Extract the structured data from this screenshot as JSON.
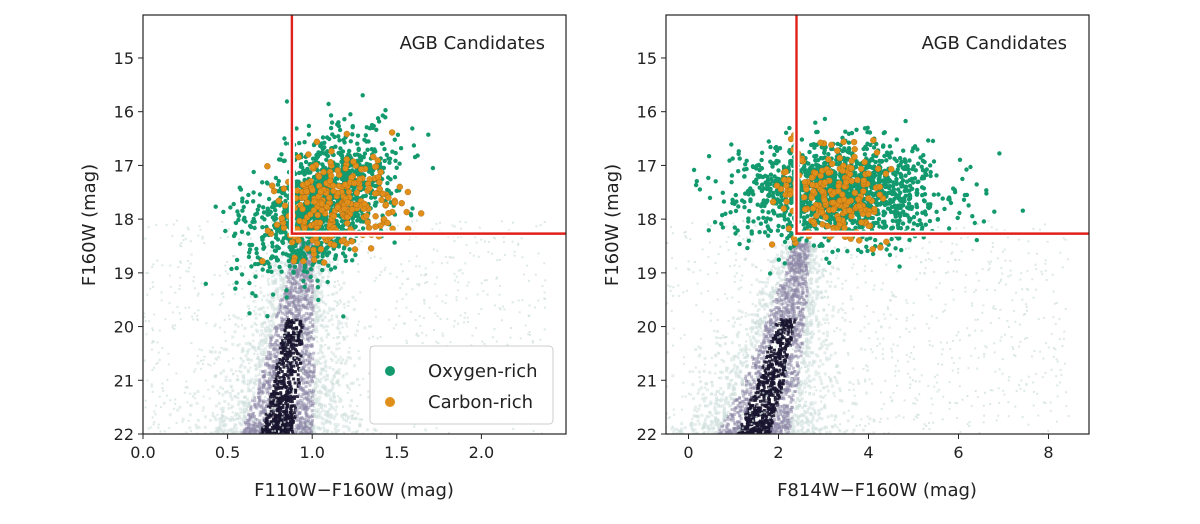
{
  "chart_data": [
    {
      "type": "scatter",
      "title": "",
      "annotation": "AGB Candidates",
      "xlabel": "F110W−F160W (mag)",
      "ylabel": "F160W (mag)",
      "xlim": [
        0.0,
        2.5
      ],
      "ylim": [
        22.0,
        14.2
      ],
      "y_inverted": true,
      "xticks": [
        0.0,
        0.5,
        1.0,
        1.5,
        2.0
      ],
      "xtick_labels": [
        "0.0",
        "0.5",
        "1.0",
        "1.5",
        "2.0"
      ],
      "yticks": [
        15,
        16,
        17,
        18,
        19,
        20,
        21,
        22
      ],
      "ytick_labels": [
        "15",
        "16",
        "17",
        "18",
        "19",
        "20",
        "21",
        "22"
      ],
      "grid": false,
      "legend": {
        "position": "bottom-right",
        "entries": [
          "Oxygen-rich",
          "Carbon-rich"
        ]
      },
      "selection_box": {
        "color_min": 0.88,
        "mag_max": 18.27,
        "color": "#e0201a"
      },
      "background": {
        "type": "density",
        "ridge": [
          [
            0.78,
            22.0
          ],
          [
            0.84,
            21.0
          ],
          [
            0.88,
            20.0
          ],
          [
            0.92,
            19.0
          ],
          [
            0.96,
            18.3
          ]
        ],
        "colors": [
          "#1a1530",
          "#8e88a8",
          "#cfe0dc"
        ]
      },
      "series": [
        {
          "name": "Oxygen-rich",
          "color": "#129a6e",
          "cloud": {
            "center": [
              1.05,
              17.7
            ],
            "spread": [
              0.18,
              0.65
            ],
            "tilt": 0.9,
            "count": 1300
          }
        },
        {
          "name": "Carbon-rich",
          "color": "#e0901a",
          "cloud": {
            "center": [
              1.15,
              17.75
            ],
            "spread": [
              0.17,
              0.5
            ],
            "tilt": 0.5,
            "count": 260
          }
        }
      ]
    },
    {
      "type": "scatter",
      "title": "",
      "annotation": "AGB Candidates",
      "xlabel": "F814W−F160W (mag)",
      "ylabel": "F160W (mag)",
      "xlim": [
        -0.5,
        8.9
      ],
      "ylim": [
        22.0,
        14.2
      ],
      "y_inverted": true,
      "xticks": [
        0,
        2,
        4,
        6,
        8
      ],
      "xtick_labels": [
        "0",
        "2",
        "4",
        "6",
        "8"
      ],
      "yticks": [
        15,
        16,
        17,
        18,
        19,
        20,
        21,
        22
      ],
      "ytick_labels": [
        "15",
        "16",
        "17",
        "18",
        "19",
        "20",
        "21",
        "22"
      ],
      "grid": false,
      "selection_box": {
        "color_min": 2.4,
        "mag_max": 18.27,
        "color": "#e0201a"
      },
      "background": {
        "type": "density",
        "ridge": [
          [
            1.4,
            22.0
          ],
          [
            1.8,
            21.0
          ],
          [
            2.1,
            20.0
          ],
          [
            2.35,
            19.0
          ],
          [
            2.5,
            18.3
          ]
        ],
        "colors": [
          "#1a1530",
          "#8e88a8",
          "#cfe0dc"
        ]
      },
      "series": [
        {
          "name": "Oxygen-rich",
          "color": "#129a6e",
          "cloud": {
            "center": [
              3.4,
              17.5
            ],
            "spread": [
              1.1,
              0.45
            ],
            "tilt": -0.05,
            "count": 1500
          }
        },
        {
          "name": "Carbon-rich",
          "color": "#e0901a",
          "cloud": {
            "center": [
              3.2,
              17.6
            ],
            "spread": [
              0.6,
              0.45
            ],
            "tilt": 0.0,
            "count": 200
          }
        }
      ]
    }
  ]
}
